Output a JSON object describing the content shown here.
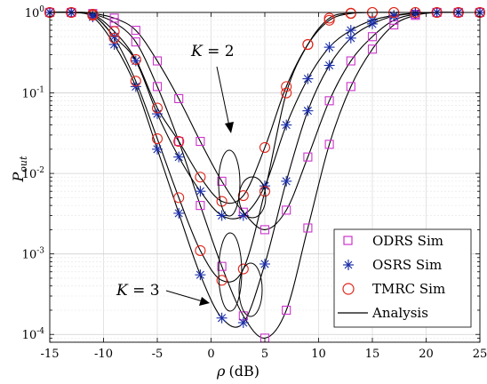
{
  "chart_data": {
    "type": "line",
    "title": "",
    "xlabel": "ρ (dB)",
    "ylabel": "P_out",
    "ylabel_main": "P",
    "ylabel_sub": "out",
    "xlabel_var": "ρ",
    "xlabel_unit": "(dB)",
    "xlim": [
      -15,
      25
    ],
    "ylim": [
      8e-05,
      1
    ],
    "yscale": "log",
    "grid": true,
    "legend_position": "bottom-right",
    "x_ticks": [
      -15,
      -10,
      -5,
      0,
      5,
      10,
      15,
      20,
      25
    ],
    "x_tick_labels": [
      "-15",
      "-10",
      "-5",
      "0",
      "5",
      "10",
      "15",
      "20",
      "25"
    ],
    "y_ticks": [
      0.0001,
      0.001,
      0.01,
      0.1,
      1
    ],
    "y_tick_labels": [
      {
        "base": "10",
        "exp": "-4"
      },
      {
        "base": "10",
        "exp": "-3"
      },
      {
        "base": "10",
        "exp": "-2"
      },
      {
        "base": "10",
        "exp": "-1"
      },
      {
        "base": "10",
        "exp": "0"
      }
    ],
    "legend": [
      {
        "label": "ODRS Sim",
        "marker": "square",
        "color": "#cc33cc"
      },
      {
        "label": "OSRS Sim",
        "marker": "asterisk",
        "color": "#1a2ea8"
      },
      {
        "label": "TMRC Sim",
        "marker": "circle",
        "color": "#e0261b"
      },
      {
        "label": "Analysis",
        "marker": "line",
        "color": "#000000"
      }
    ],
    "annotations": [
      {
        "text": "K = 2",
        "var": "K",
        "value": "2"
      },
      {
        "text": "K = 3",
        "var": "K",
        "value": "3"
      }
    ],
    "series": [
      {
        "name": "ODRS Sim",
        "group": "K=2",
        "marker": "square",
        "color": "#cc33cc",
        "x": [
          -15,
          -13,
          -11,
          -9,
          -7,
          -5,
          -3,
          -1,
          1,
          3,
          5,
          7,
          9,
          11,
          13,
          15,
          17,
          19,
          21,
          23,
          25
        ],
        "y": [
          1,
          1,
          0.97,
          0.85,
          0.6,
          0.25,
          0.085,
          0.025,
          0.008,
          0.0033,
          0.002,
          0.0035,
          0.016,
          0.08,
          0.25,
          0.5,
          0.8,
          0.95,
          1,
          1,
          1
        ]
      },
      {
        "name": "ODRS Sim",
        "group": "K=3",
        "marker": "square",
        "color": "#cc33cc",
        "x": [
          -15,
          -13,
          -11,
          -9,
          -7,
          -5,
          -3,
          -1,
          1,
          3,
          5,
          7,
          9,
          11,
          13,
          15,
          17,
          19,
          21,
          23,
          25
        ],
        "y": [
          1,
          1,
          0.95,
          0.75,
          0.43,
          0.12,
          0.025,
          0.004,
          0.0007,
          0.00017,
          9e-05,
          0.0002,
          0.0021,
          0.023,
          0.12,
          0.35,
          0.7,
          0.92,
          1,
          1,
          1
        ]
      },
      {
        "name": "OSRS Sim",
        "group": "K=2",
        "marker": "asterisk",
        "color": "#1a2ea8",
        "x": [
          -15,
          -13,
          -11,
          -9,
          -7,
          -5,
          -3,
          -1,
          1,
          3,
          5,
          7,
          9,
          11,
          13,
          15,
          17,
          19,
          21,
          23,
          25
        ],
        "y": [
          1,
          1,
          0.93,
          0.5,
          0.25,
          0.055,
          0.016,
          0.006,
          0.003,
          0.003,
          0.007,
          0.04,
          0.15,
          0.37,
          0.6,
          0.8,
          0.92,
          0.98,
          1,
          1,
          1
        ]
      },
      {
        "name": "OSRS Sim",
        "group": "K=3",
        "marker": "asterisk",
        "color": "#1a2ea8",
        "x": [
          -15,
          -13,
          -11,
          -9,
          -7,
          -5,
          -3,
          -1,
          1,
          3,
          5,
          7,
          9,
          11,
          13,
          15,
          17,
          19,
          21,
          23,
          25
        ],
        "y": [
          1,
          1,
          0.88,
          0.4,
          0.12,
          0.02,
          0.0032,
          0.00055,
          0.00016,
          0.00014,
          0.00075,
          0.008,
          0.06,
          0.22,
          0.48,
          0.72,
          0.9,
          0.97,
          1,
          1,
          1
        ]
      },
      {
        "name": "TMRC Sim",
        "group": "K=2",
        "marker": "circle",
        "color": "#e0261b",
        "x": [
          -15,
          -13,
          -11,
          -9,
          -7,
          -5,
          -3,
          -1,
          1,
          3,
          5,
          7,
          9,
          11,
          13,
          15,
          17,
          19,
          21,
          23,
          25
        ],
        "y": [
          1,
          1,
          0.95,
          0.58,
          0.26,
          0.065,
          0.025,
          0.009,
          0.0045,
          0.0053,
          0.021,
          0.12,
          0.4,
          0.8,
          0.97,
          1,
          1,
          1,
          1,
          1,
          1
        ]
      },
      {
        "name": "TMRC Sim",
        "group": "K=3",
        "marker": "circle",
        "color": "#e0261b",
        "x": [
          -15,
          -13,
          -11,
          -9,
          -7,
          -5,
          -3,
          -1,
          1,
          3,
          5,
          7,
          9,
          11,
          13,
          15,
          17,
          19,
          21,
          23,
          25
        ],
        "y": [
          1,
          1,
          0.92,
          0.48,
          0.14,
          0.027,
          0.005,
          0.0011,
          0.00047,
          0.00065,
          0.006,
          0.1,
          0.4,
          0.85,
          0.98,
          1,
          1,
          1,
          1,
          1,
          1
        ]
      }
    ]
  }
}
